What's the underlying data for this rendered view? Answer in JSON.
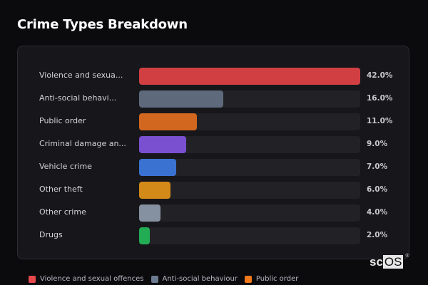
{
  "header": {
    "title": "Crime Types Breakdown"
  },
  "rows": [
    {
      "label": "Violence and sexua...",
      "pct": "42.0%",
      "color": "#d13f42",
      "value": 42.0
    },
    {
      "label": "Anti-social behavi...",
      "pct": "16.0%",
      "color": "#5e6a7c",
      "value": 16.0
    },
    {
      "label": "Public order",
      "pct": "11.0%",
      "color": "#d2671f",
      "value": 11.0
    },
    {
      "label": "Criminal damage an...",
      "pct": "9.0%",
      "color": "#7a4fd0",
      "value": 9.0
    },
    {
      "label": "Vehicle crime",
      "pct": "7.0%",
      "color": "#3a72d2",
      "value": 7.0
    },
    {
      "label": "Other theft",
      "pct": "6.0%",
      "color": "#d38a18",
      "value": 6.0
    },
    {
      "label": "Other crime",
      "pct": "4.0%",
      "color": "#8590a0",
      "value": 4.0
    },
    {
      "label": "Drugs",
      "pct": "2.0%",
      "color": "#22ad55",
      "value": 2.0
    }
  ],
  "legend": [
    {
      "label": "Violence and sexual offences",
      "color": "#e5484d"
    },
    {
      "label": "Anti-social behaviour",
      "color": "#6b7a90"
    },
    {
      "label": "Public order",
      "color": "#f07a1a"
    }
  ],
  "watermark": {
    "prefix": "sc",
    "boxed": "OS",
    "reg": "®"
  },
  "chart_data": {
    "type": "bar",
    "orientation": "horizontal",
    "title": "Crime Types Breakdown",
    "categories": [
      "Violence and sexual offences",
      "Anti-social behaviour",
      "Public order",
      "Criminal damage and arson",
      "Vehicle crime",
      "Other theft",
      "Other crime",
      "Drugs"
    ],
    "category_labels_displayed": [
      "Violence and sexua...",
      "Anti-social behavi...",
      "Public order",
      "Criminal damage an...",
      "Vehicle crime",
      "Other theft",
      "Other crime",
      "Drugs"
    ],
    "values": [
      42.0,
      16.0,
      11.0,
      9.0,
      7.0,
      6.0,
      4.0,
      2.0
    ],
    "value_labels": [
      "42.0%",
      "16.0%",
      "11.0%",
      "9.0%",
      "7.0%",
      "6.0%",
      "4.0%",
      "2.0%"
    ],
    "colors": [
      "#d13f42",
      "#5e6a7c",
      "#d2671f",
      "#7a4fd0",
      "#3a72d2",
      "#d38a18",
      "#8590a0",
      "#22ad55"
    ],
    "xlabel": "",
    "ylabel": "",
    "unit": "%",
    "scale": "relative to max (42.0% = full track)",
    "grid": false,
    "legend_position": "bottom"
  }
}
